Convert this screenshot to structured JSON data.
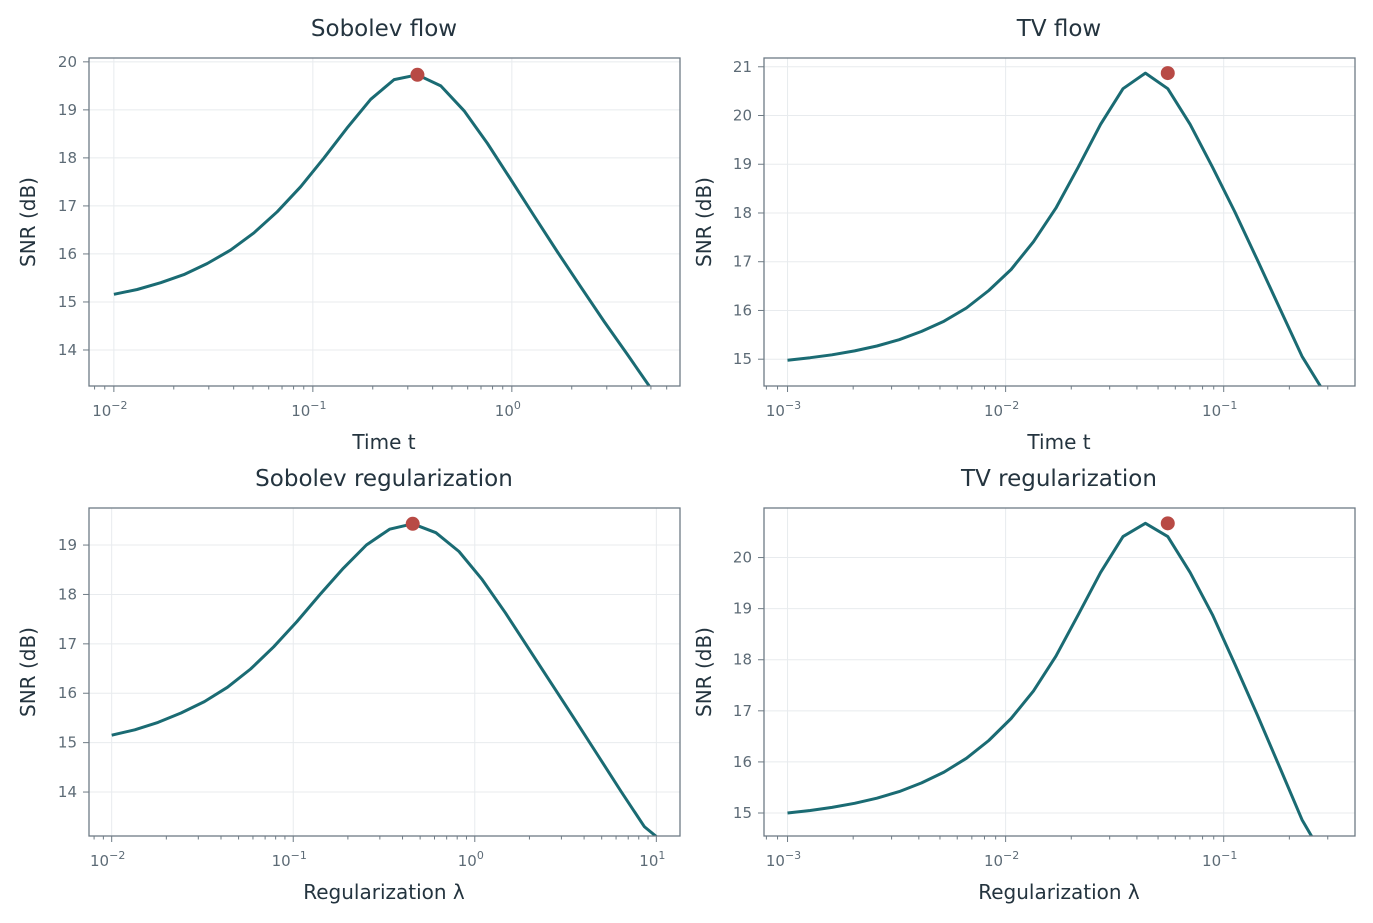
{
  "colors": {
    "line": "#1a6b73",
    "peak": "#b84a45",
    "frame": "#6e7b85",
    "grid": "#e8ebee",
    "text": "#24343f"
  },
  "chart_data": [
    {
      "type": "line",
      "title": "Sobolev flow",
      "xlabel": "Time t",
      "ylabel": "SNR (dB)",
      "xscale": "log",
      "grid": true,
      "xlim": [
        0.0075,
        7.0
      ],
      "ylim": [
        13.25,
        20.08
      ],
      "xticks": [
        {
          "base": "10",
          "exp": "−2",
          "value": 0.01
        },
        {
          "base": "10",
          "exp": "−1",
          "value": 0.1
        },
        {
          "base": "10",
          "exp": "0",
          "value": 1
        }
      ],
      "yticks": [
        14,
        15,
        16,
        17,
        18,
        19,
        20
      ],
      "x": [
        0.01,
        0.0131,
        0.0172,
        0.0225,
        0.0295,
        0.0386,
        0.0506,
        0.0663,
        0.0869,
        0.1138,
        0.1491,
        0.1954,
        0.256,
        0.3354,
        0.4394,
        0.5757,
        0.7543,
        0.9883,
        1.2949,
        1.6966,
        2.2228,
        2.9124,
        3.8159,
        5.0
      ],
      "y": [
        15.16,
        15.26,
        15.4,
        15.57,
        15.8,
        16.08,
        16.44,
        16.88,
        17.4,
        18.0,
        18.63,
        19.22,
        19.63,
        19.73,
        19.5,
        18.98,
        18.3,
        17.55,
        16.79,
        16.04,
        15.31,
        14.59,
        13.9,
        13.2
      ],
      "peak": {
        "x": 0.3354,
        "y": 19.73
      }
    },
    {
      "type": "line",
      "title": "TV flow",
      "xlabel": "Time t",
      "ylabel": "SNR (dB)",
      "xscale": "log",
      "grid": true,
      "xlim": [
        0.00078,
        0.4
      ],
      "ylim": [
        14.45,
        21.18
      ],
      "xticks": [
        {
          "base": "10",
          "exp": "−3",
          "value": 0.001
        },
        {
          "base": "10",
          "exp": "−2",
          "value": 0.01
        },
        {
          "base": "10",
          "exp": "−1",
          "value": 0.1
        }
      ],
      "yticks": [
        15,
        16,
        17,
        18,
        19,
        20,
        21
      ],
      "x": [
        0.001,
        0.00127,
        0.0016,
        0.00203,
        0.00257,
        0.00325,
        0.00412,
        0.00522,
        0.00661,
        0.00837,
        0.0106,
        0.01342,
        0.017,
        0.02153,
        0.02727,
        0.03454,
        0.04374,
        0.0554,
        0.07016,
        0.08886,
        0.11254,
        0.14253,
        0.18051,
        0.22861,
        0.3
      ],
      "y": [
        14.98,
        15.03,
        15.09,
        15.17,
        15.27,
        15.4,
        15.57,
        15.78,
        16.05,
        16.41,
        16.84,
        17.41,
        18.1,
        18.94,
        19.82,
        20.55,
        20.87,
        20.55,
        19.82,
        18.94,
        18.02,
        17.04,
        16.05,
        15.06,
        14.2
      ],
      "peak": {
        "x": 0.0554,
        "y": 20.87
      }
    },
    {
      "type": "line",
      "title": "Sobolev regularization",
      "xlabel": "Regularization λ",
      "ylabel": "SNR (dB)",
      "xscale": "log",
      "grid": true,
      "xlim": [
        0.0075,
        13.5
      ],
      "ylim": [
        13.11,
        19.75
      ],
      "xticks": [
        {
          "base": "10",
          "exp": "−2",
          "value": 0.01
        },
        {
          "base": "10",
          "exp": "−1",
          "value": 0.1
        },
        {
          "base": "10",
          "exp": "0",
          "value": 1
        },
        {
          "base": "10",
          "exp": "1",
          "value": 10
        }
      ],
      "yticks": [
        14,
        15,
        16,
        17,
        18,
        19
      ],
      "x": [
        0.01,
        0.0134,
        0.018,
        0.0241,
        0.0324,
        0.0434,
        0.0582,
        0.0781,
        0.1048,
        0.1406,
        0.1886,
        0.2529,
        0.3393,
        0.4551,
        0.6105,
        0.8189,
        1.0985,
        1.4734,
        1.9765,
        2.6512,
        3.5563,
        4.7705,
        6.3992,
        8.5839,
        10.0
      ],
      "y": [
        15.15,
        15.26,
        15.41,
        15.6,
        15.83,
        16.12,
        16.49,
        16.94,
        17.45,
        18.0,
        18.53,
        19.0,
        19.32,
        19.43,
        19.25,
        18.87,
        18.3,
        17.63,
        16.91,
        16.19,
        15.47,
        14.74,
        14.01,
        13.3,
        13.1
      ],
      "peak": {
        "x": 0.4551,
        "y": 19.43
      }
    },
    {
      "type": "line",
      "title": "TV regularization",
      "xlabel": "Regularization λ",
      "ylabel": "SNR (dB)",
      "xscale": "log",
      "grid": true,
      "xlim": [
        0.00078,
        0.4
      ],
      "ylim": [
        14.55,
        20.97
      ],
      "xticks": [
        {
          "base": "10",
          "exp": "−3",
          "value": 0.001
        },
        {
          "base": "10",
          "exp": "−2",
          "value": 0.01
        },
        {
          "base": "10",
          "exp": "−1",
          "value": 0.1
        }
      ],
      "yticks": [
        15,
        16,
        17,
        18,
        19,
        20
      ],
      "x": [
        0.001,
        0.00127,
        0.0016,
        0.00203,
        0.00257,
        0.00325,
        0.00412,
        0.00522,
        0.00661,
        0.00837,
        0.0106,
        0.01342,
        0.017,
        0.02153,
        0.02727,
        0.03454,
        0.04374,
        0.0554,
        0.07016,
        0.08886,
        0.11254,
        0.14253,
        0.18051,
        0.22861,
        0.3
      ],
      "y": [
        15.0,
        15.05,
        15.11,
        15.19,
        15.29,
        15.42,
        15.59,
        15.8,
        16.07,
        16.42,
        16.85,
        17.39,
        18.07,
        18.88,
        19.71,
        20.41,
        20.67,
        20.41,
        19.71,
        18.88,
        17.91,
        16.92,
        15.9,
        14.87,
        14.0
      ],
      "peak": {
        "x": 0.0554,
        "y": 20.67
      }
    }
  ]
}
